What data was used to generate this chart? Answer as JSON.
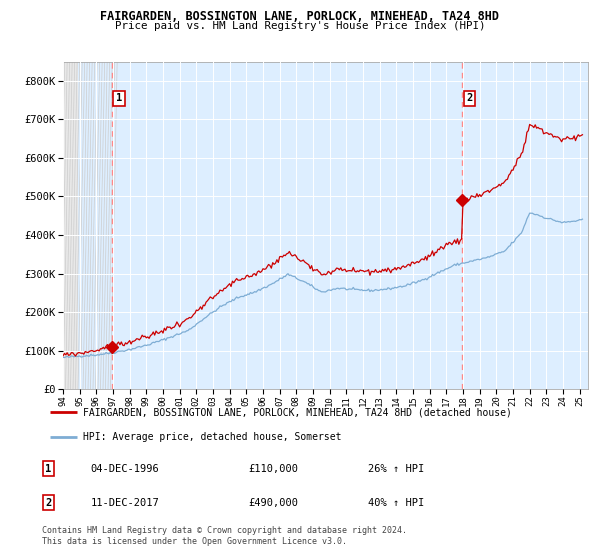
{
  "title1": "FAIRGARDEN, BOSSINGTON LANE, PORLOCK, MINEHEAD, TA24 8HD",
  "title2": "Price paid vs. HM Land Registry's House Price Index (HPI)",
  "legend_label1": "FAIRGARDEN, BOSSINGTON LANE, PORLOCK, MINEHEAD, TA24 8HD (detached house)",
  "legend_label2": "HPI: Average price, detached house, Somerset",
  "annotation1_date": "04-DEC-1996",
  "annotation1_price": "£110,000",
  "annotation1_hpi": "26% ↑ HPI",
  "annotation1_year": 1996.92,
  "annotation1_value": 110000,
  "annotation2_date": "11-DEC-2017",
  "annotation2_price": "£490,000",
  "annotation2_hpi": "40% ↑ HPI",
  "annotation2_year": 2017.94,
  "annotation2_value": 490000,
  "red_color": "#cc0000",
  "blue_color": "#7eadd4",
  "marker_color": "#cc0000",
  "vline_color": "#ff8888",
  "bg_color": "#ddeeff",
  "grid_color": "#ffffff",
  "ylim": [
    0,
    850000
  ],
  "yticks": [
    0,
    100000,
    200000,
    300000,
    400000,
    500000,
    600000,
    700000,
    800000
  ],
  "ytick_labels": [
    "£0",
    "£100K",
    "£200K",
    "£300K",
    "£400K",
    "£500K",
    "£600K",
    "£700K",
    "£800K"
  ],
  "xstart": 1994,
  "xend": 2025.5,
  "footer": "Contains HM Land Registry data © Crown copyright and database right 2024.\nThis data is licensed under the Open Government Licence v3.0."
}
